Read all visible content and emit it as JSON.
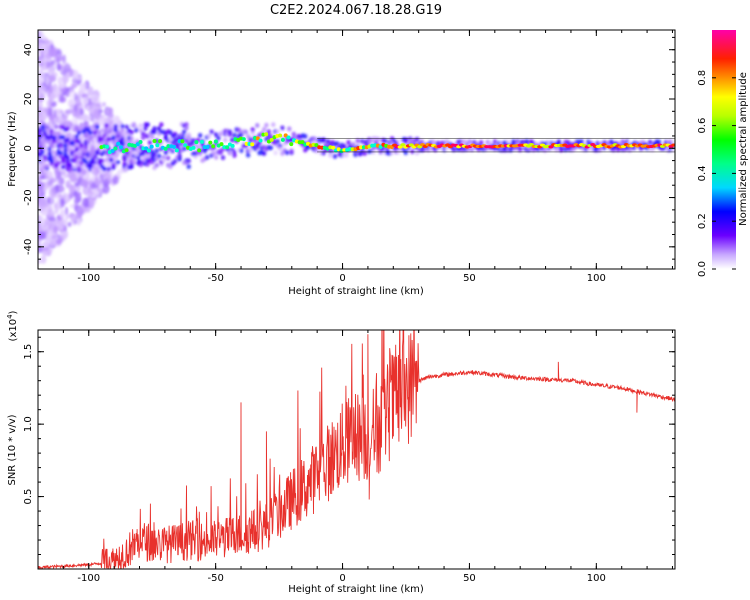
{
  "title": "C2E2.2024.067.18.28.G19",
  "chart_data": [
    {
      "type": "heatmap",
      "xlabel": "Height of straight line (km)",
      "ylabel": "Frequency (Hz)",
      "xlim": [
        -120,
        131
      ],
      "ylim": [
        -49,
        48
      ],
      "x_ticks": [
        -100,
        -50,
        0,
        50,
        100
      ],
      "y_ticks": [
        -40,
        -20,
        0,
        20,
        40
      ],
      "colorbar": {
        "label": "Normalized spectral amplitude",
        "range": [
          0,
          1
        ],
        "ticks": [
          0.0,
          0.2,
          0.4,
          0.6,
          0.8
        ]
      },
      "ridge_center_hz": [
        [
          -120,
          0
        ],
        [
          -100,
          0
        ],
        [
          -80,
          1
        ],
        [
          -60,
          1
        ],
        [
          -50,
          1
        ],
        [
          -40,
          2
        ],
        [
          -30,
          4
        ],
        [
          -20,
          3
        ],
        [
          -10,
          1
        ],
        [
          0,
          -1
        ],
        [
          10,
          1
        ],
        [
          20,
          1
        ],
        [
          30,
          1
        ],
        [
          50,
          1
        ],
        [
          80,
          1
        ],
        [
          100,
          1
        ],
        [
          131,
          1
        ]
      ]
    },
    {
      "type": "line",
      "xlabel": "Height of straight line (km)",
      "ylabel": "SNR (10 * v/v)",
      "y_multiplier": "(x10^4)",
      "xlim": [
        -120,
        131
      ],
      "ylim": [
        0,
        1.65
      ],
      "x_ticks": [
        -100,
        -50,
        0,
        50,
        100
      ],
      "y_ticks": [
        0.5,
        1.0,
        1.5
      ],
      "line_color": "#e8312c",
      "series": [
        {
          "x": [
            -120,
            -110,
            -100,
            -95,
            -90,
            -85,
            -80,
            -75,
            -70,
            -65,
            -60,
            -55,
            -50,
            -45,
            -40,
            -35,
            -30,
            -25,
            -20,
            -15,
            -10,
            -5,
            0,
            5,
            10,
            15,
            20,
            25,
            30,
            35,
            40,
            50,
            60,
            70,
            80,
            90,
            100,
            110,
            120,
            131
          ],
          "values": [
            0.01,
            0.02,
            0.03,
            0.04,
            0.06,
            0.12,
            0.2,
            0.18,
            0.17,
            0.18,
            0.2,
            0.19,
            0.2,
            0.22,
            0.24,
            0.26,
            0.3,
            0.38,
            0.48,
            0.56,
            0.65,
            0.75,
            0.85,
            0.92,
            0.9,
            1.0,
            1.15,
            1.25,
            1.3,
            1.33,
            1.34,
            1.36,
            1.34,
            1.32,
            1.31,
            1.3,
            1.27,
            1.25,
            1.21,
            1.17
          ]
        }
      ],
      "spikes": [
        {
          "x": -40,
          "value": 1.15
        },
        {
          "x": -30,
          "value": 0.95
        },
        {
          "x": 10,
          "value": 1.62
        },
        {
          "x": 10.5,
          "value": 0.48
        },
        {
          "x": 85,
          "value": 1.43
        },
        {
          "x": 116,
          "value": 1.08
        }
      ]
    }
  ]
}
